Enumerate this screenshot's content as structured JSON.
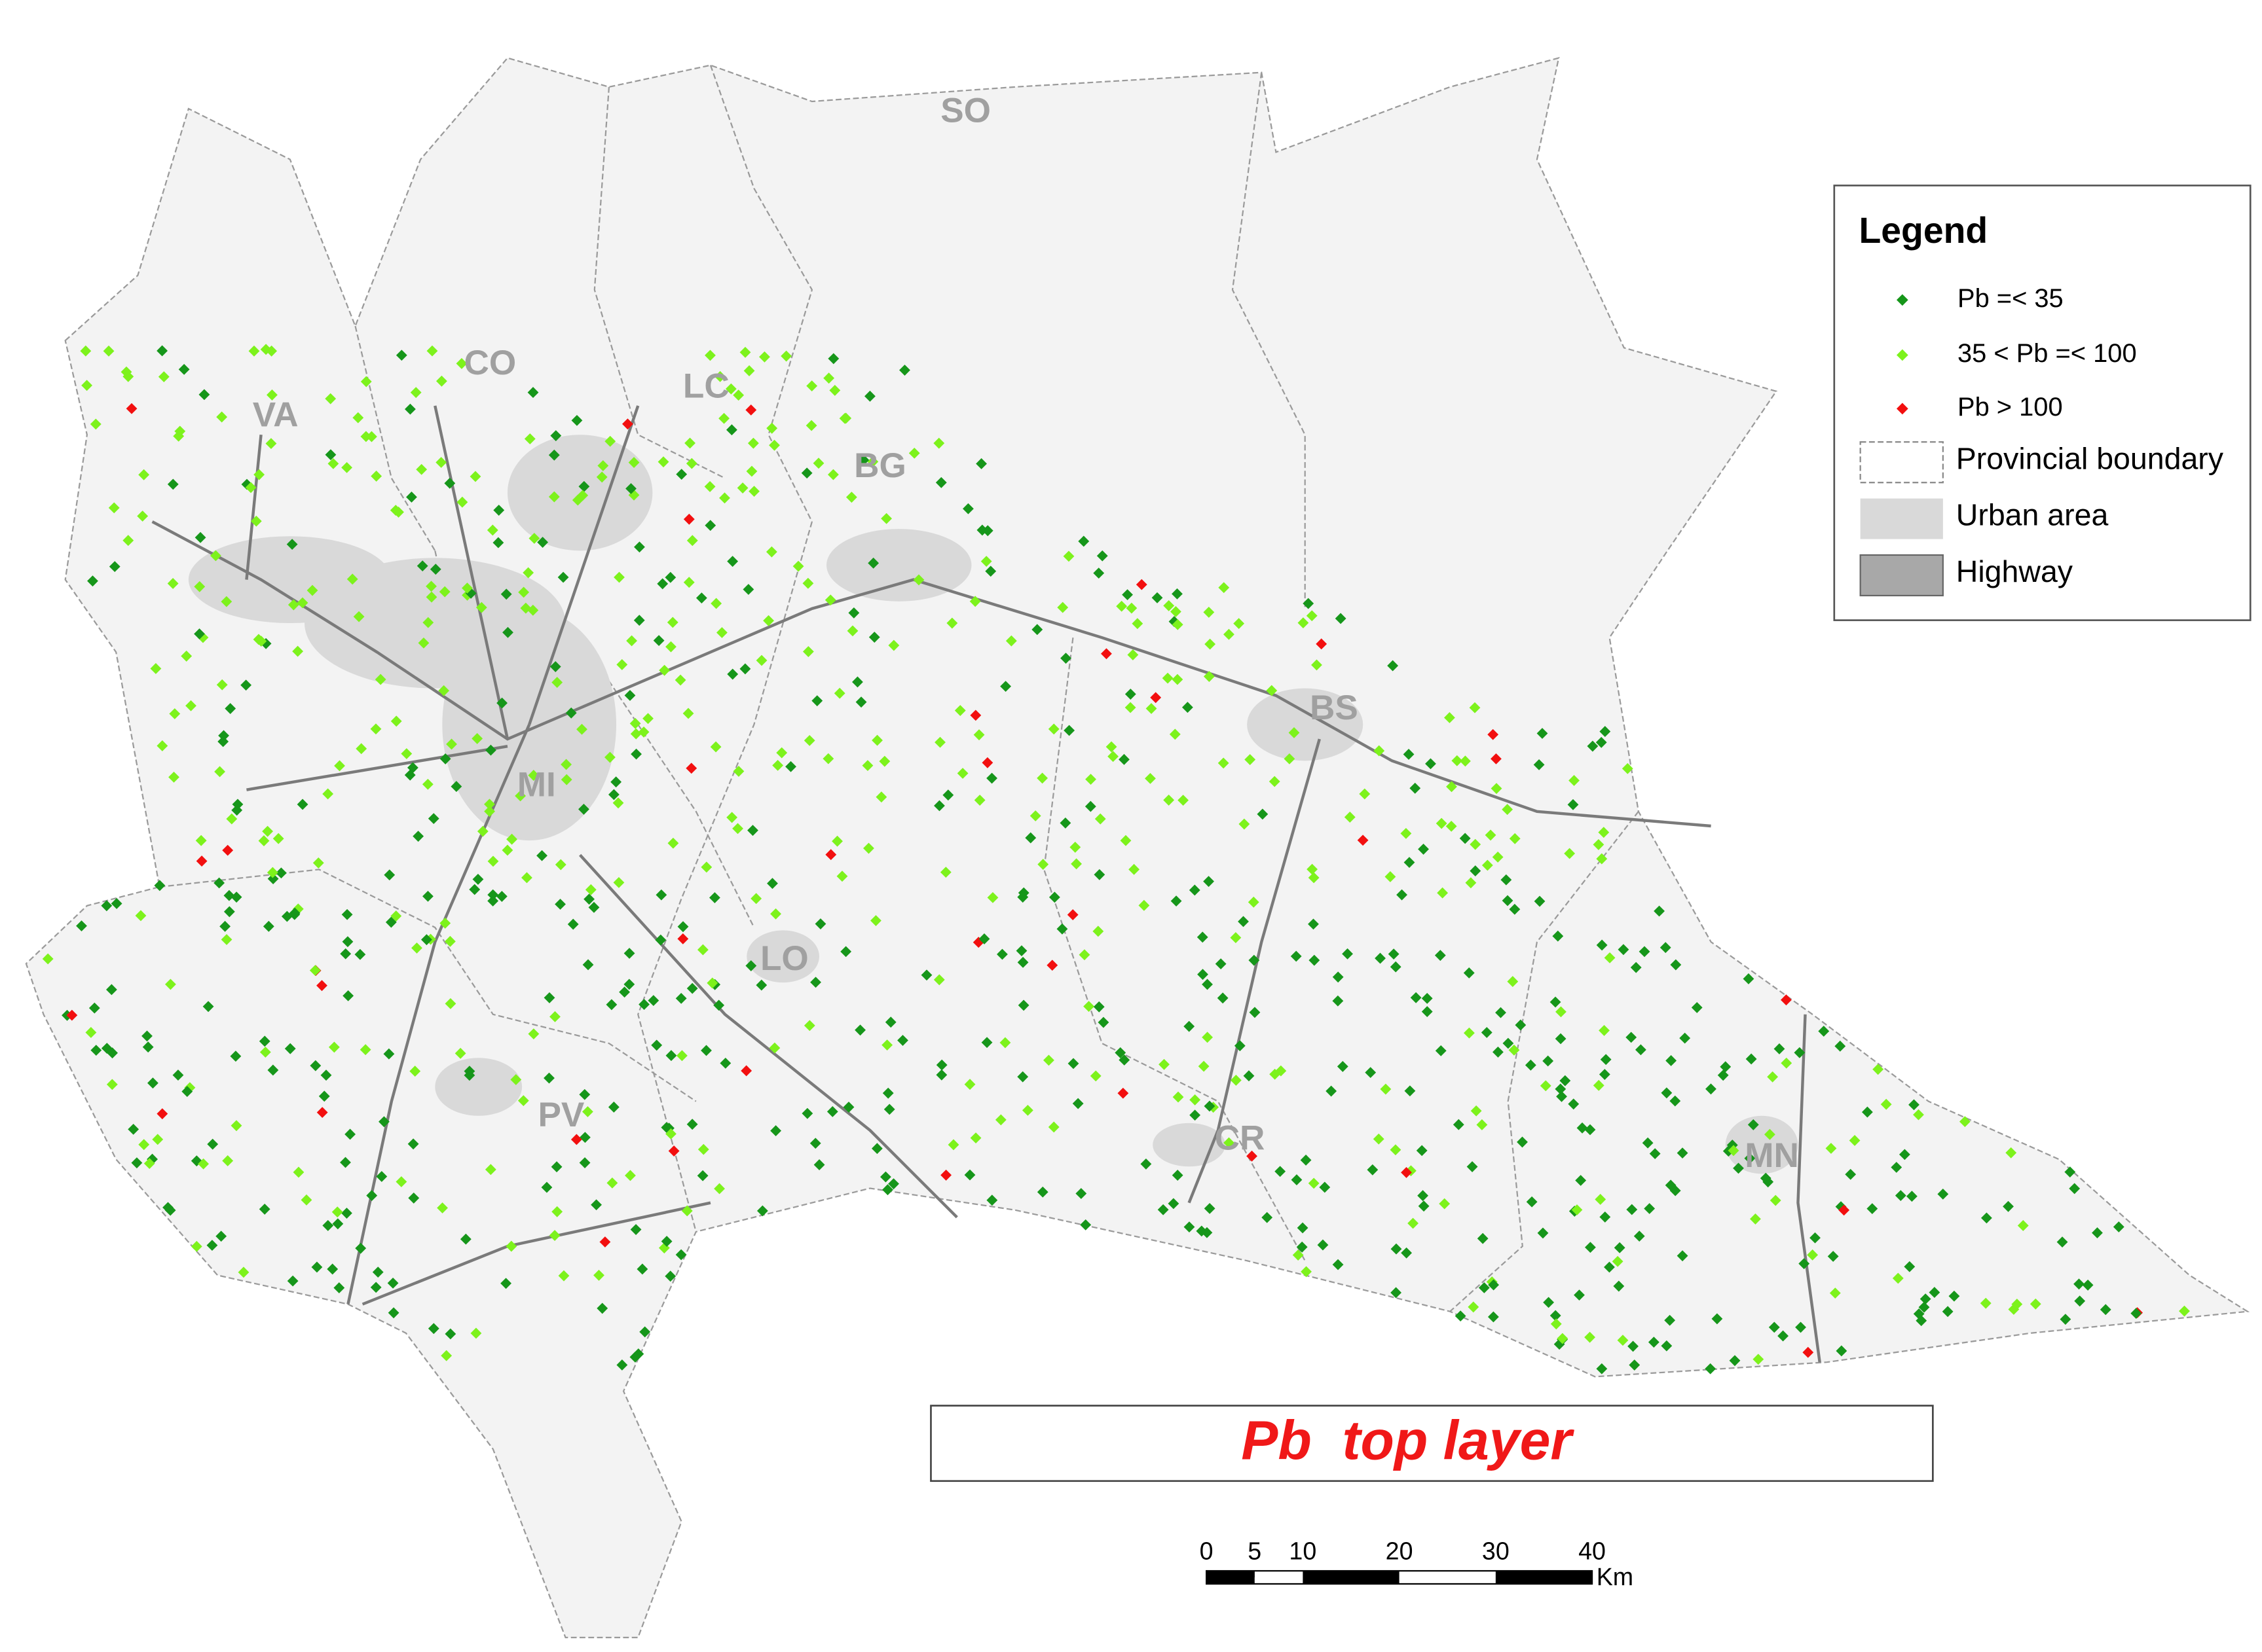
{
  "title": "Pb  top layer",
  "provinces": [
    "SO",
    "CO",
    "VA",
    "LC",
    "BG",
    "BS",
    "MI",
    "LO",
    "PV",
    "CR",
    "MN"
  ],
  "legend": {
    "title": "Legend",
    "items": [
      {
        "label": "Pb =< 35",
        "color": "#16961a"
      },
      {
        "label": "35 < Pb =< 100",
        "color": "#7df21c"
      },
      {
        "label": "Pb > 100",
        "color": "#f20f0f"
      },
      {
        "label": "Provincial boundary"
      },
      {
        "label": "Urban area"
      },
      {
        "label": "Highway"
      }
    ]
  },
  "scale_bar": {
    "ticks": [
      0,
      5,
      10,
      20,
      30,
      40
    ],
    "unit": "Km"
  }
}
